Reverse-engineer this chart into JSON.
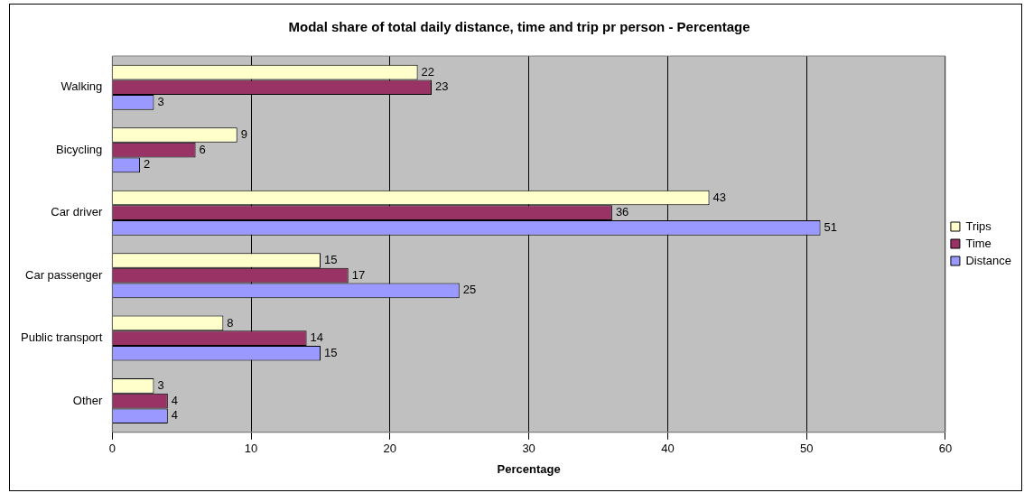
{
  "chart_data": {
    "type": "bar",
    "orientation": "horizontal",
    "title": "Modal share of total daily distance, time and trip pr person - Percentage",
    "xlabel": "Percentage",
    "categories": [
      "Walking",
      "Bicycling",
      "Car driver",
      "Car passenger",
      "Public transport",
      "Other"
    ],
    "series": [
      {
        "name": "Trips",
        "color": "#ffffcc",
        "values": [
          22,
          9,
          43,
          15,
          8,
          3
        ]
      },
      {
        "name": "Time",
        "color": "#993366",
        "values": [
          23,
          6,
          36,
          17,
          14,
          4
        ]
      },
      {
        "name": "Distance",
        "color": "#9999ff",
        "values": [
          3,
          2,
          51,
          25,
          15,
          4
        ]
      }
    ],
    "xlim": [
      0,
      60
    ],
    "xticks": [
      0,
      10,
      20,
      30,
      40,
      50,
      60
    ],
    "grid": "x",
    "legend": "right",
    "data_labels": true
  }
}
